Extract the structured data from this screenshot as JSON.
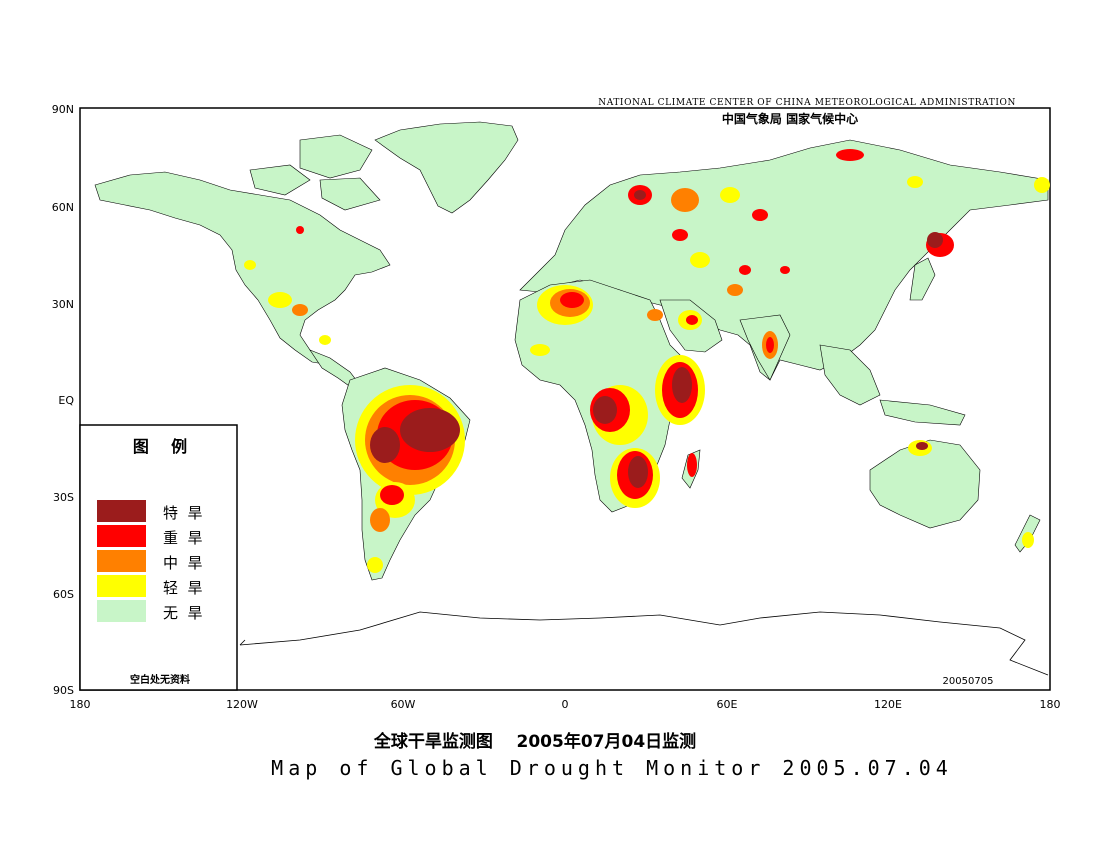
{
  "header": {
    "agency_en": "NATIONAL CLIMATE CENTER OF CHINA METEOROLOGICAL ADMINISTRATION",
    "agency_zh": "中国气象局   国家气候中心"
  },
  "map": {
    "lat_labels": [
      "90N",
      "60N",
      "30N",
      "EQ",
      "30S",
      "60S",
      "90S"
    ],
    "lon_labels": [
      "180",
      "120W",
      "60W",
      "0",
      "60E",
      "120E",
      "180"
    ],
    "stamp": "20050705"
  },
  "legend": {
    "title": "图    例",
    "items": [
      {
        "label": "特  旱",
        "color": "#9b1c1c"
      },
      {
        "label": "重  旱",
        "color": "#ff0000"
      },
      {
        "label": "中  旱",
        "color": "#ff8000"
      },
      {
        "label": "轻  旱",
        "color": "#ffff00"
      },
      {
        "label": "无  旱",
        "color": "#c8f5c8"
      }
    ],
    "note": "空白处无资料"
  },
  "footer": {
    "title_zh": "全球干旱监测图    2005年07月04日监测",
    "title_en": "Map of Global Drought Monitor 2005.07.04"
  },
  "colors": {
    "land": "#c8f5c8",
    "mild": "#ffff00",
    "moderate": "#ff8000",
    "severe": "#ff0000",
    "extreme": "#9b1c1c",
    "border": "#000000"
  }
}
